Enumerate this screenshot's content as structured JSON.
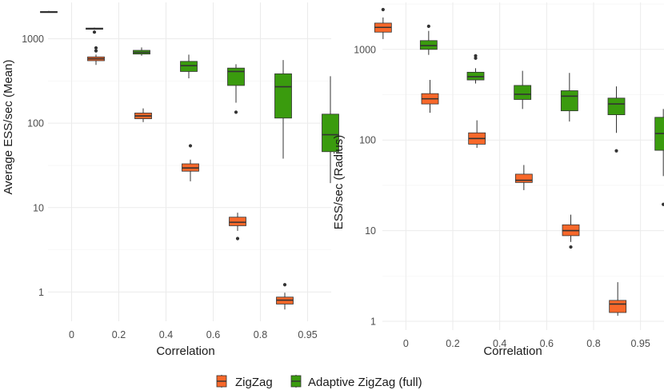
{
  "colors": {
    "zigzag": "#F8682A",
    "adaptive": "#3A9B0E",
    "median": "#333333",
    "whisker": "#333333"
  },
  "legend": {
    "items": [
      "ZigZag",
      "Adaptive ZigZag (full)"
    ]
  },
  "chart_data": [
    {
      "type": "boxplot",
      "title": "",
      "xlabel": "Correlation",
      "ylabel": "Average ESS/sec (Mean)",
      "yscale": "log10",
      "ylim": [
        0.45,
        2700
      ],
      "categories": [
        "0",
        "0.2",
        "0.4",
        "0.6",
        "0.8",
        "0.95"
      ],
      "yticks": [
        1,
        10,
        100,
        1000
      ],
      "ytick_labels": [
        "1",
        "10",
        "100",
        "1000"
      ],
      "series": [
        {
          "name": "ZigZag",
          "color_key": "zigzag",
          "boxes": [
            {
              "q1": 2050,
              "median": 2080,
              "q3": 2110,
              "low": 2040,
              "high": 2140,
              "outliers": []
            },
            {
              "q1": 550,
              "median": 580,
              "q3": 610,
              "low": 490,
              "high": 650,
              "outliers": [
                720,
                780
              ]
            },
            {
              "q1": 113,
              "median": 122,
              "q3": 132,
              "low": 103,
              "high": 150,
              "outliers": []
            },
            {
              "q1": 27,
              "median": 29.5,
              "q3": 33,
              "low": 20.5,
              "high": 37,
              "outliers": [
                54
              ]
            },
            {
              "q1": 6.1,
              "median": 6.7,
              "q3": 7.7,
              "low": 5.3,
              "high": 8.7,
              "outliers": [
                4.3
              ]
            },
            {
              "q1": 0.72,
              "median": 0.8,
              "q3": 0.87,
              "low": 0.62,
              "high": 0.98,
              "outliers": [
                1.22
              ]
            }
          ]
        },
        {
          "name": "Adaptive ZigZag (full)",
          "color_key": "adaptive",
          "boxes": [
            {
              "q1": 1300,
              "median": 1320,
              "q3": 1340,
              "low": 1280,
              "high": 1360,
              "outliers": [
                1200
              ]
            },
            {
              "q1": 660,
              "median": 690,
              "q3": 730,
              "low": 630,
              "high": 790,
              "outliers": []
            },
            {
              "q1": 410,
              "median": 480,
              "q3": 540,
              "low": 340,
              "high": 650,
              "outliers": []
            },
            {
              "q1": 280,
              "median": 410,
              "q3": 450,
              "low": 175,
              "high": 500,
              "outliers": [
                135
              ]
            },
            {
              "q1": 115,
              "median": 270,
              "q3": 385,
              "low": 38,
              "high": 560,
              "outliers": []
            },
            {
              "q1": 46,
              "median": 73,
              "q3": 128,
              "low": 19.5,
              "high": 360,
              "outliers": []
            }
          ]
        }
      ]
    },
    {
      "type": "boxplot",
      "title": "",
      "xlabel": "Correlation",
      "ylabel": "ESS/sec (Radius)",
      "yscale": "log10",
      "ylim": [
        0.8,
        3300
      ],
      "categories": [
        "0",
        "0.2",
        "0.4",
        "0.6",
        "0.8",
        "0.95"
      ],
      "yticks": [
        1,
        10,
        100,
        1000
      ],
      "ytick_labels": [
        "1",
        "10",
        "100",
        "1000"
      ],
      "series": [
        {
          "name": "ZigZag",
          "color_key": "zigzag",
          "boxes": [
            {
              "q1": 1550,
              "median": 1750,
              "q3": 1950,
              "low": 1300,
              "high": 2250,
              "outliers": [
                2750
              ]
            },
            {
              "q1": 250,
              "median": 285,
              "q3": 325,
              "low": 200,
              "high": 460,
              "outliers": []
            },
            {
              "q1": 90,
              "median": 104,
              "q3": 120,
              "low": 82,
              "high": 165,
              "outliers": []
            },
            {
              "q1": 34,
              "median": 36,
              "q3": 42,
              "low": 28,
              "high": 53,
              "outliers": []
            },
            {
              "q1": 8.8,
              "median": 10,
              "q3": 11.6,
              "low": 7.5,
              "high": 15,
              "outliers": [
                6.6
              ]
            },
            {
              "q1": 1.25,
              "median": 1.55,
              "q3": 1.7,
              "low": 1.15,
              "high": 2.7,
              "outliers": []
            }
          ]
        },
        {
          "name": "Adaptive ZigZag (full)",
          "color_key": "adaptive",
          "boxes": [
            {
              "q1": 1000,
              "median": 1100,
              "q3": 1250,
              "low": 870,
              "high": 1600,
              "outliers": [
                1800
              ]
            },
            {
              "q1": 460,
              "median": 500,
              "q3": 560,
              "low": 420,
              "high": 620,
              "outliers": [
                800,
                850
              ]
            },
            {
              "q1": 280,
              "median": 320,
              "q3": 400,
              "low": 220,
              "high": 580,
              "outliers": []
            },
            {
              "q1": 210,
              "median": 305,
              "q3": 350,
              "low": 160,
              "high": 550,
              "outliers": []
            },
            {
              "q1": 190,
              "median": 250,
              "q3": 290,
              "low": 120,
              "high": 390,
              "outliers": [
                76
              ]
            },
            {
              "q1": 77,
              "median": 118,
              "q3": 178,
              "low": 40,
              "high": 220,
              "outliers": [
                19.5
              ]
            }
          ]
        }
      ]
    }
  ]
}
